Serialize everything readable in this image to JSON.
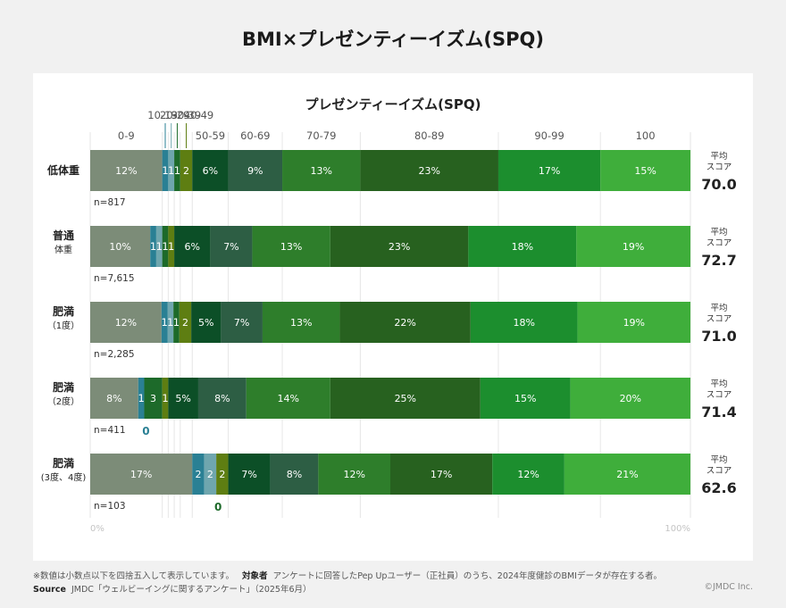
{
  "page": {
    "title": "BMI×プレゼンティーイズム(SPQ)",
    "footnote_note": "※数値は小数点以下を四捨五入して表示しています。",
    "footnote_target_label": "対象者",
    "footnote_target_text": "アンケートに回答したPep Upユーザー（正社員）のうち、2024年度健診のBMIデータが存在する者。",
    "source_label": "Source",
    "source_text": "JMDC「ウェルビーイングに関するアンケート」（2025年6月）",
    "copyright": "©JMDC Inc."
  },
  "chart_data": {
    "type": "stacked_bar_horizontal",
    "title": "プレゼンティーイズム(SPQ)",
    "categories": [
      "0-9",
      "10-19",
      "20-29",
      "30-39",
      "40-49",
      "50-59",
      "60-69",
      "70-79",
      "80-89",
      "90-99",
      "100"
    ],
    "category_colors": [
      "#7c8c78",
      "#2a8094",
      "#6fa6ae",
      "#1d6a2a",
      "#5e7e12",
      "#0c4f27",
      "#2d5e44",
      "#2e7e2b",
      "#27611f",
      "#1c8e2e",
      "#3fae3b"
    ],
    "xlim": [
      0,
      100
    ],
    "x_axis_labels": [
      "0%",
      "100%"
    ],
    "score_label": "平均\nスコア",
    "groups": [
      {
        "name": "低体重",
        "n": "n=817",
        "score": "70.0",
        "values": [
          12,
          1,
          1,
          1,
          2,
          6,
          9,
          13,
          23,
          17,
          15
        ],
        "labels": [
          "12%",
          "1",
          "1",
          "1",
          "2",
          "6%",
          "9%",
          "13%",
          "23%",
          "17%",
          "15%"
        ]
      },
      {
        "name": "普通\n体重",
        "n": "n=7,615",
        "score": "72.7",
        "values": [
          10,
          1,
          1,
          1,
          1,
          6,
          7,
          13,
          23,
          18,
          19
        ],
        "labels": [
          "10%",
          "1",
          "1",
          "1",
          "1",
          "6%",
          "7%",
          "13%",
          "23%",
          "18%",
          "19%"
        ]
      },
      {
        "name": "肥満\n（1度）",
        "n": "n=2,285",
        "score": "71.0",
        "values": [
          12,
          1,
          1,
          1,
          2,
          5,
          7,
          13,
          22,
          18,
          19
        ],
        "labels": [
          "12%",
          "1",
          "1",
          "1",
          "2",
          "5%",
          "7%",
          "13%",
          "22%",
          "18%",
          "19%"
        ]
      },
      {
        "name": "肥満\n（2度）",
        "n": "n=411",
        "score": "71.4",
        "values": [
          8,
          1,
          0,
          3,
          1,
          5,
          8,
          14,
          25,
          15,
          20
        ],
        "labels": [
          "8%",
          "1",
          "0",
          "3",
          "1",
          "5%",
          "8%",
          "14%",
          "25%",
          "15%",
          "20%"
        ]
      },
      {
        "name": "肥満\n(3度、4度)",
        "n": "n=103",
        "score": "62.6",
        "values": [
          17,
          2,
          2,
          0,
          2,
          7,
          8,
          12,
          17,
          12,
          21
        ],
        "labels": [
          "17%",
          "2",
          "2",
          "0",
          "2",
          "7%",
          "8%",
          "12%",
          "17%",
          "12%",
          "21%"
        ]
      }
    ]
  }
}
